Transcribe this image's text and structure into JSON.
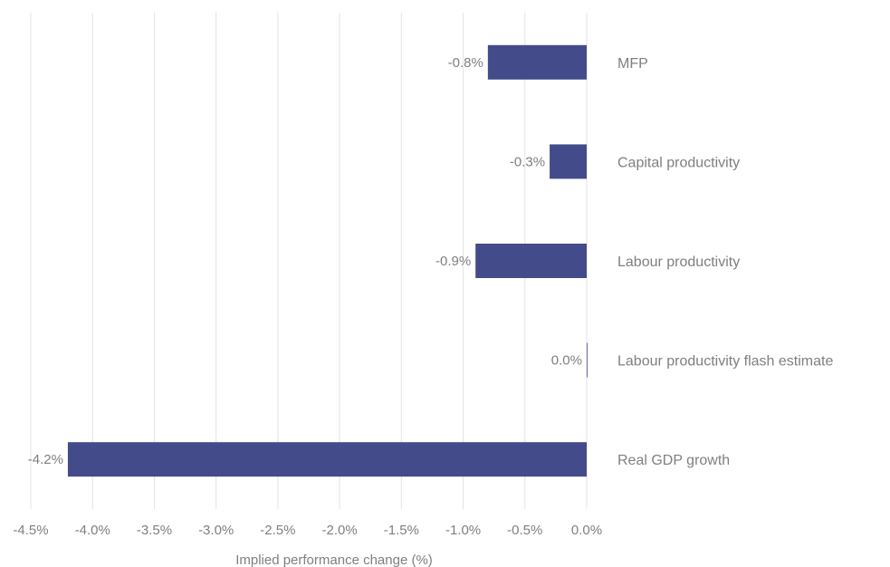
{
  "chart_data": {
    "type": "bar",
    "orientation": "horizontal",
    "categories": [
      "MFP",
      "Capital productivity",
      "Labour productivity",
      "Labour productivity flash estimate",
      "Real GDP growth"
    ],
    "values": [
      -0.8,
      -0.3,
      -0.9,
      0.0,
      -4.2
    ],
    "data_labels": [
      "-0.8%",
      "-0.3%",
      "-0.9%",
      "0.0%",
      "-4.2%"
    ],
    "xticks": [
      -4.5,
      -4.0,
      -3.5,
      -3.0,
      -2.5,
      -2.0,
      -1.5,
      -1.0,
      -0.5,
      0.0
    ],
    "xtick_labels": [
      "-4.5%",
      "-4.0%",
      "-3.5%",
      "-3.0%",
      "-2.5%",
      "-2.0%",
      "-1.5%",
      "-1.0%",
      "-0.5%",
      "0.0%"
    ],
    "xlim": [
      -4.5,
      0.0
    ],
    "xlabel": "Implied performance change (%)",
    "ylabel": "",
    "title": "",
    "grid": "vertical",
    "legend": "none",
    "bar_color": "#434b8a"
  }
}
